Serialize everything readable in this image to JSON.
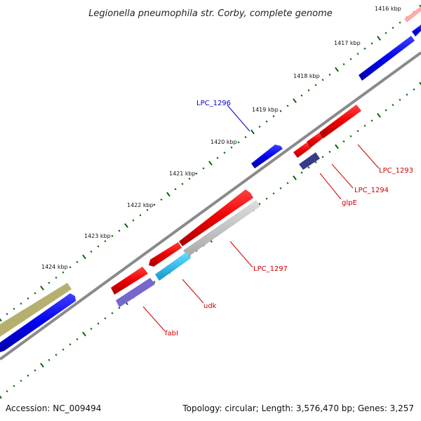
{
  "title": "Legionella pneumophila str. Corby, complete genome",
  "footer": {
    "accession": "Accession: NC_009494",
    "summary": "Topology: circular; Length: 3,576,470 bp; Genes: 3,257"
  },
  "ticks": [
    "1416 kbp",
    "1417 kbp",
    "1418 kbp",
    "1419 kbp",
    "1420 kbp",
    "1421 kbp",
    "1422 kbp",
    "1423 kbp",
    "1424 kbp"
  ],
  "genes": [
    {
      "label": "LPC_1296",
      "color": "#0000cc"
    },
    {
      "label": "LPC_1293",
      "color": "#cc0000"
    },
    {
      "label": "LPC_1294",
      "color": "#cc0000"
    },
    {
      "label": "glpE",
      "color": "#cc0000"
    },
    {
      "label": "LPC_1297",
      "color": "#cc0000"
    },
    {
      "label": "udk",
      "color": "#cc0000"
    },
    {
      "label": "fabI",
      "color": "#cc0000"
    }
  ],
  "colors": {
    "forward_cds": "#0000ee",
    "reverse_cds": "#ee0000",
    "trna_like": "#555599",
    "rna": "#ffaaaa",
    "gene_other": "#8888dd",
    "pseudo": "#cccccc",
    "cyan_feature": "#33bbee",
    "olive_feature": "#b5b070",
    "backbone": "#888888",
    "tick": "#006600"
  }
}
